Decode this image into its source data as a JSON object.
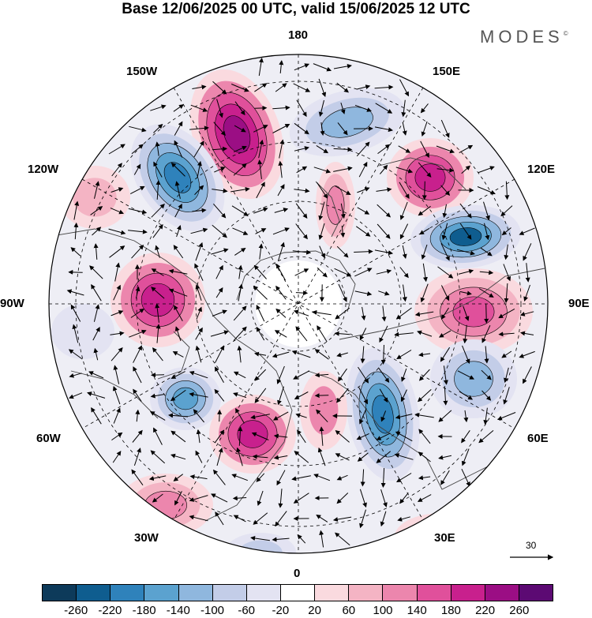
{
  "title": "Base 12/06/2025 00 UTC, valid 15/06/2025 12 UTC",
  "brand": "MODES",
  "brand_mark": "©",
  "longitude_labels": {
    "top": "180",
    "top_left": "150W",
    "top_right": "150E",
    "upper_left": "120W",
    "upper_right": "120E",
    "left": "90W",
    "right": "90E",
    "lower_left": "60W",
    "lower_right": "60E",
    "bottom_left": "30W",
    "bottom_right": "30E",
    "bottom": "0"
  },
  "reference_vector": "30",
  "colorbar": {
    "colors": [
      "#0d3a5a",
      "#0f5d8f",
      "#2f82bb",
      "#5ba2cf",
      "#8fb7de",
      "#c3cde8",
      "#e3e3f2",
      "#ffffff",
      "#fadadf",
      "#f4b4c4",
      "#ec86ad",
      "#e0509b",
      "#c8208d",
      "#9b0e84",
      "#5c0a73"
    ],
    "labels": [
      "-260",
      "-220",
      "-180",
      "-140",
      "-100",
      "-60",
      "-20",
      "20",
      "60",
      "100",
      "140",
      "180",
      "220",
      "260"
    ]
  }
}
